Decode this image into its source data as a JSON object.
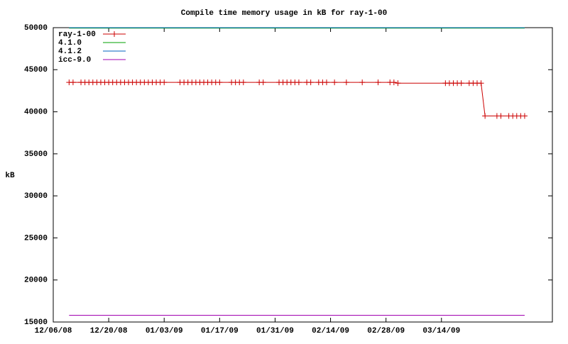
{
  "chart_data": {
    "type": "line",
    "title": "Compile time memory usage in kB for ray-1-00",
    "y_label": "kB",
    "xlim": [
      "12/06/08",
      "04/11/09"
    ],
    "xticks": [
      "12/06/08",
      "12/20/08",
      "01/03/09",
      "01/17/09",
      "01/31/09",
      "02/14/09",
      "02/28/09",
      "03/14/09"
    ],
    "ylim": [
      15000,
      50000
    ],
    "yticks": [
      15000,
      20000,
      25000,
      30000,
      35000,
      40000,
      45000,
      50000
    ],
    "legend": "top-left",
    "series": [
      {
        "name": "ray-1-00",
        "color": "#cc0000",
        "markers": true,
        "x": [
          "12/10/08",
          "12/11/08",
          "12/13/08",
          "12/14/08",
          "12/15/08",
          "12/16/08",
          "12/17/08",
          "12/18/08",
          "12/19/08",
          "12/20/08",
          "12/21/08",
          "12/22/08",
          "12/23/08",
          "12/24/08",
          "12/25/08",
          "12/26/08",
          "12/27/08",
          "12/28/08",
          "12/29/08",
          "12/30/08",
          "12/31/08",
          "01/01/09",
          "01/02/09",
          "01/03/09",
          "01/07/09",
          "01/08/09",
          "01/09/09",
          "01/10/09",
          "01/11/09",
          "01/12/09",
          "01/13/09",
          "01/14/09",
          "01/15/09",
          "01/16/09",
          "01/17/09",
          "01/20/09",
          "01/21/09",
          "01/22/09",
          "01/23/09",
          "01/27/09",
          "01/28/09",
          "02/01/09",
          "02/02/09",
          "02/03/09",
          "02/04/09",
          "02/05/09",
          "02/06/09",
          "02/08/09",
          "02/09/09",
          "02/11/09",
          "02/12/09",
          "02/13/09",
          "02/15/09",
          "02/18/09",
          "02/22/09",
          "02/26/09",
          "03/01/09",
          "03/02/09",
          "03/03/09",
          "03/15/09",
          "03/16/09",
          "03/17/09",
          "03/18/09",
          "03/19/09",
          "03/21/09",
          "03/22/09",
          "03/23/09",
          "03/24/09",
          "03/25/09",
          "03/28/09",
          "03/29/09",
          "03/31/09",
          "04/01/09",
          "04/02/09",
          "04/03/09",
          "04/04/09"
        ],
        "values": [
          43500,
          43500,
          43500,
          43500,
          43500,
          43500,
          43500,
          43500,
          43500,
          43500,
          43500,
          43500,
          43500,
          43500,
          43500,
          43500,
          43500,
          43500,
          43500,
          43500,
          43500,
          43500,
          43500,
          43500,
          43500,
          43500,
          43500,
          43500,
          43500,
          43500,
          43500,
          43500,
          43500,
          43500,
          43500,
          43500,
          43500,
          43500,
          43500,
          43500,
          43500,
          43500,
          43500,
          43500,
          43500,
          43500,
          43500,
          43500,
          43500,
          43500,
          43500,
          43500,
          43500,
          43500,
          43500,
          43500,
          43500,
          43500,
          43400,
          43400,
          43400,
          43400,
          43400,
          43400,
          43400,
          43400,
          43400,
          43400,
          39500,
          39500,
          39500,
          39500,
          39500,
          39500,
          39500,
          39500
        ]
      },
      {
        "name": "4.1.0",
        "color": "#00a000",
        "markers": false,
        "x": [
          "12/10/08",
          "04/04/09"
        ],
        "values": [
          49950,
          49950
        ]
      },
      {
        "name": "4.1.2",
        "color": "#0060c0",
        "markers": false,
        "x": [
          "12/10/08",
          "04/04/09"
        ],
        "values": [
          50000,
          50000
        ]
      },
      {
        "name": "icc-9.0",
        "color": "#a000b0",
        "markers": false,
        "x": [
          "12/10/08",
          "04/04/09"
        ],
        "values": [
          15800,
          15800
        ]
      }
    ]
  }
}
